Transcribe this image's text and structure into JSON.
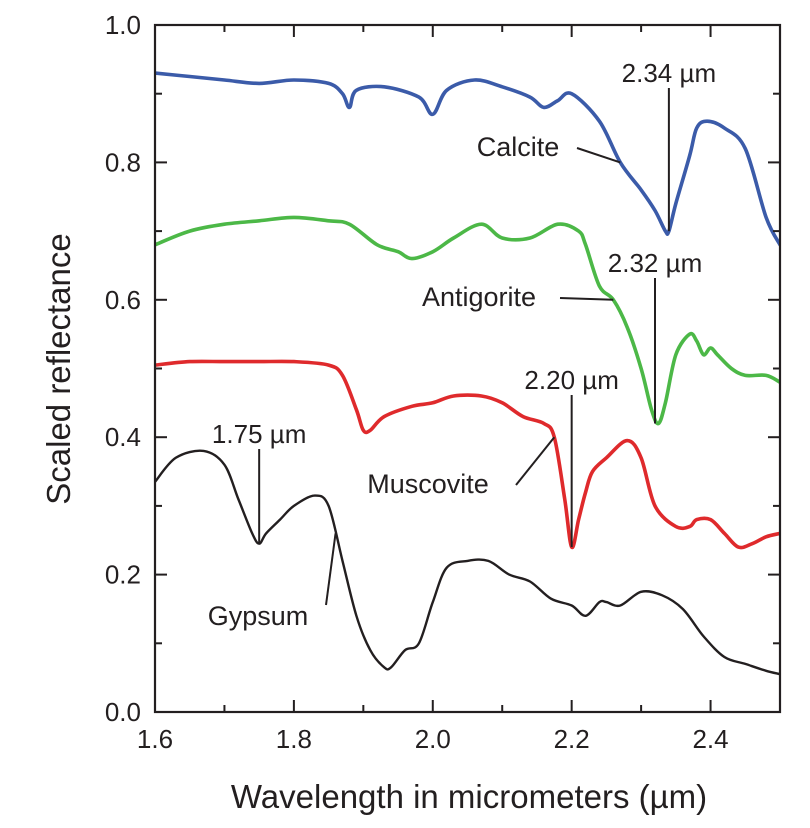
{
  "chart_data": {
    "type": "line",
    "xlabel": "Wavelength in micrometers (µm)",
    "ylabel": "Scaled reflectance",
    "xlim": [
      1.6,
      2.5
    ],
    "ylim": [
      0.0,
      1.0
    ],
    "xticks": [
      1.6,
      1.8,
      2.0,
      2.2,
      2.4
    ],
    "xtick_labels": [
      "1.6",
      "1.8",
      "2.0",
      "2.2",
      "2.4"
    ],
    "yticks": [
      0.0,
      0.2,
      0.4,
      0.6,
      0.8,
      1.0
    ],
    "ytick_labels": [
      "0.0",
      "0.2",
      "0.4",
      "0.6",
      "0.8",
      "1.0"
    ],
    "grid": false,
    "series": [
      {
        "name": "Calcite",
        "color": "#3b5ba9",
        "x": [
          1.6,
          1.65,
          1.7,
          1.75,
          1.8,
          1.85,
          1.87,
          1.88,
          1.89,
          1.93,
          1.98,
          2.0,
          2.02,
          2.06,
          2.1,
          2.14,
          2.16,
          2.18,
          2.2,
          2.24,
          2.27,
          2.3,
          2.32,
          2.335,
          2.34,
          2.35,
          2.37,
          2.38,
          2.395,
          2.42,
          2.45,
          2.48,
          2.5
        ],
        "values": [
          0.93,
          0.925,
          0.92,
          0.915,
          0.92,
          0.915,
          0.9,
          0.88,
          0.905,
          0.91,
          0.895,
          0.87,
          0.905,
          0.92,
          0.91,
          0.895,
          0.88,
          0.89,
          0.9,
          0.86,
          0.8,
          0.76,
          0.73,
          0.7,
          0.7,
          0.74,
          0.81,
          0.85,
          0.86,
          0.85,
          0.82,
          0.72,
          0.68
        ]
      },
      {
        "name": "Antigorite",
        "color": "#4cb847",
        "x": [
          1.6,
          1.65,
          1.7,
          1.75,
          1.8,
          1.85,
          1.88,
          1.92,
          1.95,
          1.97,
          2.0,
          2.03,
          2.07,
          2.1,
          2.14,
          2.18,
          2.21,
          2.22,
          2.24,
          2.26,
          2.28,
          2.3,
          2.315,
          2.325,
          2.335,
          2.35,
          2.37,
          2.38,
          2.39,
          2.4,
          2.41,
          2.43,
          2.45,
          2.48,
          2.5
        ],
        "values": [
          0.68,
          0.7,
          0.71,
          0.715,
          0.72,
          0.715,
          0.71,
          0.68,
          0.67,
          0.66,
          0.67,
          0.69,
          0.71,
          0.69,
          0.69,
          0.71,
          0.7,
          0.68,
          0.62,
          0.6,
          0.56,
          0.5,
          0.44,
          0.42,
          0.45,
          0.52,
          0.55,
          0.54,
          0.52,
          0.53,
          0.52,
          0.5,
          0.49,
          0.49,
          0.48
        ]
      },
      {
        "name": "Muscovite",
        "color": "#df2a2c",
        "x": [
          1.6,
          1.65,
          1.7,
          1.75,
          1.8,
          1.85,
          1.87,
          1.89,
          1.9,
          1.91,
          1.93,
          1.97,
          2.0,
          2.03,
          2.07,
          2.1,
          2.13,
          2.16,
          2.175,
          2.19,
          2.2,
          2.21,
          2.22,
          2.23,
          2.25,
          2.28,
          2.3,
          2.32,
          2.35,
          2.37,
          2.38,
          2.4,
          2.42,
          2.44,
          2.46,
          2.48,
          2.5
        ],
        "values": [
          0.505,
          0.51,
          0.51,
          0.51,
          0.51,
          0.505,
          0.49,
          0.44,
          0.41,
          0.41,
          0.43,
          0.445,
          0.45,
          0.46,
          0.46,
          0.45,
          0.43,
          0.42,
          0.4,
          0.31,
          0.24,
          0.28,
          0.32,
          0.35,
          0.37,
          0.395,
          0.37,
          0.3,
          0.27,
          0.27,
          0.28,
          0.28,
          0.26,
          0.24,
          0.245,
          0.255,
          0.26
        ]
      },
      {
        "name": "Gypsum",
        "color": "#231f20",
        "x": [
          1.6,
          1.63,
          1.67,
          1.7,
          1.72,
          1.74,
          1.75,
          1.76,
          1.78,
          1.8,
          1.83,
          1.85,
          1.87,
          1.89,
          1.91,
          1.93,
          1.94,
          1.96,
          1.98,
          2.0,
          2.02,
          2.05,
          2.08,
          2.11,
          2.14,
          2.17,
          2.2,
          2.22,
          2.24,
          2.25,
          2.27,
          2.3,
          2.33,
          2.36,
          2.39,
          2.42,
          2.45,
          2.48,
          2.5
        ],
        "values": [
          0.335,
          0.37,
          0.38,
          0.36,
          0.31,
          0.26,
          0.245,
          0.26,
          0.28,
          0.3,
          0.315,
          0.3,
          0.22,
          0.14,
          0.09,
          0.065,
          0.065,
          0.09,
          0.1,
          0.16,
          0.21,
          0.22,
          0.22,
          0.2,
          0.19,
          0.165,
          0.155,
          0.14,
          0.16,
          0.16,
          0.155,
          0.175,
          0.17,
          0.15,
          0.11,
          0.08,
          0.07,
          0.06,
          0.055
        ]
      }
    ],
    "annotations": [
      {
        "text": "2.34 µm",
        "x": 2.34,
        "y": 0.7
      },
      {
        "text": "2.32 µm",
        "x": 2.32,
        "y": 0.42
      },
      {
        "text": "2.20 µm",
        "x": 2.2,
        "y": 0.24
      },
      {
        "text": "1.75 µm",
        "x": 1.75,
        "y": 0.245
      }
    ],
    "series_labels": [
      {
        "text": "Calcite",
        "series": 0,
        "at_x": 2.27
      },
      {
        "text": "Antigorite",
        "series": 1,
        "at_x": 2.26
      },
      {
        "text": "Muscovite",
        "series": 2,
        "at_x": 2.175
      },
      {
        "text": "Gypsum",
        "series": 3,
        "at_x": 1.86
      }
    ]
  }
}
